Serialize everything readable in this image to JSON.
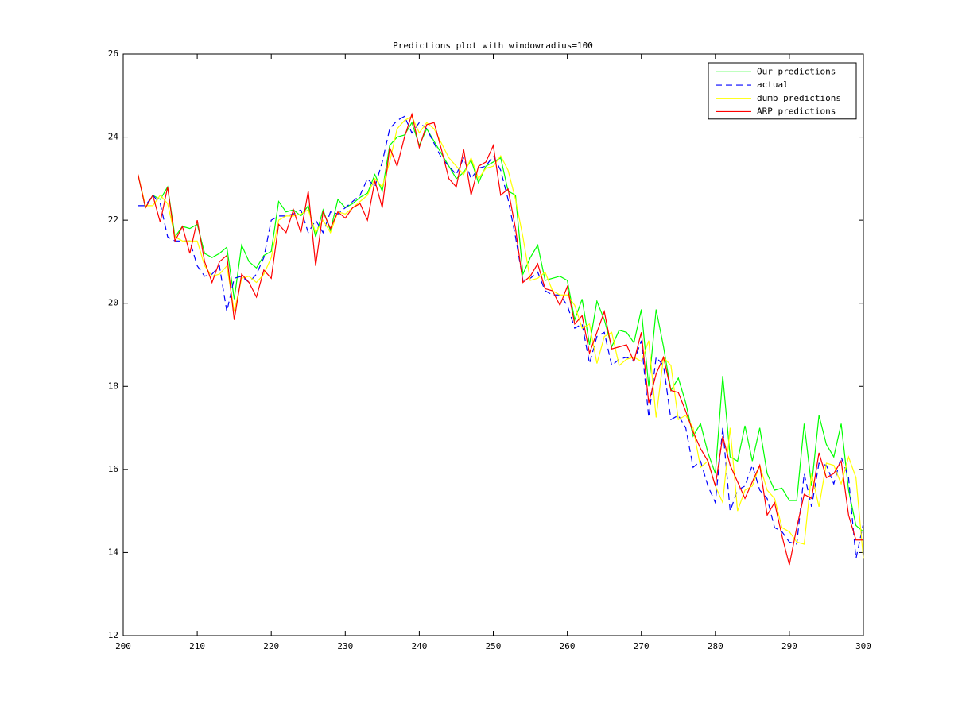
{
  "chart_data": {
    "type": "line",
    "title": "Predictions plot with windowradius=100",
    "x": [
      202,
      203,
      204,
      205,
      206,
      207,
      208,
      209,
      210,
      211,
      212,
      213,
      214,
      215,
      216,
      217,
      218,
      219,
      220,
      221,
      222,
      223,
      224,
      225,
      226,
      227,
      228,
      229,
      230,
      231,
      232,
      233,
      234,
      235,
      236,
      237,
      238,
      239,
      240,
      241,
      242,
      243,
      244,
      245,
      246,
      247,
      248,
      249,
      250,
      251,
      252,
      253,
      254,
      255,
      256,
      257,
      258,
      259,
      260,
      261,
      262,
      263,
      264,
      265,
      266,
      267,
      268,
      269,
      270,
      271,
      272,
      273,
      274,
      275,
      276,
      277,
      278,
      279,
      280,
      281,
      282,
      283,
      284,
      285,
      286,
      287,
      288,
      289,
      290,
      291,
      292,
      293,
      294,
      295,
      296,
      297,
      298,
      299,
      300
    ],
    "series": [
      {
        "name": "Our predictions",
        "color": "#00ff00",
        "style": "solid",
        "values": [
          23.1,
          22.3,
          22.6,
          22.5,
          22.8,
          21.6,
          21.85,
          21.8,
          21.9,
          21.2,
          21.1,
          21.2,
          21.35,
          20.1,
          21.4,
          21.0,
          20.85,
          21.15,
          21.25,
          22.45,
          22.2,
          22.25,
          22.1,
          22.35,
          21.6,
          22.25,
          21.75,
          22.5,
          22.3,
          22.4,
          22.55,
          22.65,
          23.1,
          22.7,
          23.8,
          24.0,
          24.05,
          24.35,
          23.8,
          24.2,
          23.9,
          23.6,
          23.3,
          23.0,
          23.15,
          23.45,
          22.9,
          23.3,
          23.4,
          23.5,
          22.7,
          22.6,
          20.7,
          21.1,
          21.4,
          20.55,
          20.6,
          20.65,
          20.55,
          19.6,
          20.1,
          19.0,
          20.05,
          19.6,
          18.95,
          19.35,
          19.3,
          19.05,
          19.85,
          18.0,
          19.85,
          18.95,
          17.9,
          18.2,
          17.6,
          16.8,
          17.1,
          16.4,
          15.9,
          18.25,
          16.3,
          16.2,
          17.05,
          16.2,
          17.0,
          15.9,
          15.5,
          15.55,
          15.25,
          15.25,
          17.1,
          15.6,
          17.3,
          16.6,
          16.3,
          17.1,
          15.5,
          14.65,
          14.5
        ]
      },
      {
        "name": "actual",
        "color": "#0000ff",
        "style": "dashed",
        "values": [
          22.35,
          22.35,
          22.6,
          22.4,
          21.6,
          21.5,
          21.5,
          21.5,
          20.9,
          20.65,
          20.7,
          20.9,
          19.8,
          20.6,
          20.65,
          20.5,
          20.7,
          21.1,
          22.0,
          22.1,
          22.1,
          22.15,
          22.25,
          21.7,
          22.0,
          21.7,
          22.2,
          22.15,
          22.3,
          22.45,
          22.6,
          23.0,
          22.8,
          23.4,
          24.2,
          24.4,
          24.5,
          24.1,
          24.35,
          24.2,
          23.85,
          23.5,
          23.3,
          23.1,
          23.5,
          23.0,
          23.25,
          23.3,
          23.55,
          23.2,
          22.5,
          21.6,
          20.55,
          20.6,
          20.75,
          20.3,
          20.2,
          20.2,
          19.95,
          19.4,
          19.5,
          18.55,
          19.2,
          19.3,
          18.5,
          18.65,
          18.7,
          18.6,
          19.1,
          17.25,
          18.7,
          18.5,
          17.2,
          17.3,
          17.0,
          16.05,
          16.2,
          15.6,
          15.2,
          17.0,
          15.0,
          15.5,
          15.6,
          16.1,
          15.5,
          15.3,
          14.6,
          14.5,
          14.25,
          14.2,
          15.9,
          15.1,
          16.15,
          16.1,
          15.65,
          16.3,
          15.8,
          13.85,
          14.7
        ]
      },
      {
        "name": "dumb predictions",
        "color": "#ffff00",
        "style": "solid",
        "values": [
          23.1,
          22.35,
          22.35,
          22.6,
          22.4,
          21.6,
          21.5,
          21.5,
          21.5,
          20.9,
          20.65,
          20.7,
          20.9,
          19.8,
          20.6,
          20.65,
          20.5,
          20.7,
          21.1,
          22.0,
          22.1,
          22.1,
          22.15,
          22.25,
          21.7,
          22.0,
          21.7,
          22.2,
          22.15,
          22.3,
          22.45,
          22.6,
          23.0,
          22.8,
          23.4,
          24.2,
          24.4,
          24.5,
          24.1,
          24.35,
          24.2,
          23.85,
          23.5,
          23.3,
          23.1,
          23.5,
          23.0,
          23.25,
          23.3,
          23.55,
          23.2,
          22.5,
          21.6,
          20.55,
          20.6,
          20.75,
          20.3,
          20.2,
          20.2,
          19.95,
          19.4,
          19.5,
          18.55,
          19.2,
          19.3,
          18.5,
          18.65,
          18.7,
          18.6,
          19.1,
          17.25,
          18.7,
          18.5,
          17.2,
          17.3,
          17.0,
          16.05,
          16.2,
          15.6,
          15.2,
          17.0,
          15.0,
          15.5,
          15.6,
          16.1,
          15.5,
          15.3,
          14.6,
          14.5,
          14.25,
          14.2,
          15.9,
          15.1,
          16.15,
          16.1,
          15.65,
          16.3,
          15.8,
          13.85
        ]
      },
      {
        "name": "ARP predictions",
        "color": "#ff0000",
        "style": "solid",
        "values": [
          23.1,
          22.3,
          22.6,
          21.95,
          22.8,
          21.5,
          21.85,
          21.2,
          22.0,
          21.0,
          20.5,
          21.0,
          21.15,
          19.6,
          20.7,
          20.5,
          20.15,
          20.8,
          20.6,
          21.9,
          21.7,
          22.25,
          21.7,
          22.7,
          20.9,
          22.2,
          21.8,
          22.2,
          22.05,
          22.3,
          22.4,
          22.0,
          22.95,
          22.3,
          23.75,
          23.3,
          24.0,
          24.55,
          23.75,
          24.3,
          24.35,
          23.7,
          23.0,
          22.8,
          23.7,
          22.6,
          23.3,
          23.4,
          23.8,
          22.6,
          22.75,
          21.8,
          20.5,
          20.65,
          20.95,
          20.35,
          20.3,
          19.95,
          20.4,
          19.5,
          19.7,
          18.8,
          19.3,
          19.8,
          18.9,
          18.95,
          19.0,
          18.6,
          19.3,
          17.6,
          18.3,
          18.7,
          17.9,
          17.85,
          17.4,
          16.9,
          16.5,
          16.2,
          15.6,
          16.8,
          16.1,
          15.7,
          15.3,
          15.7,
          16.1,
          14.9,
          15.2,
          14.4,
          13.7,
          14.6,
          15.4,
          15.3,
          16.4,
          15.8,
          15.9,
          16.2,
          14.9,
          14.3,
          14.3
        ]
      }
    ],
    "xlim": [
      200,
      300
    ],
    "xticks": [
      200,
      210,
      220,
      230,
      240,
      250,
      260,
      270,
      280,
      290,
      300
    ],
    "ylim": [
      12,
      26
    ],
    "yticks": [
      12,
      14,
      16,
      18,
      20,
      22,
      24,
      26
    ],
    "grid": false,
    "legend": "northeast"
  }
}
